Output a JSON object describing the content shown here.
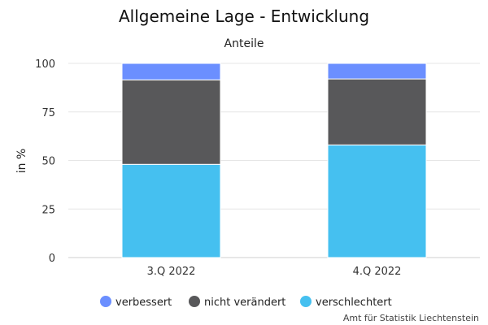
{
  "chart_data": {
    "type": "bar",
    "stacked": true,
    "title": "Allgemeine Lage - Entwicklung",
    "subtitle": "Anteile",
    "ylabel": "in %",
    "ylim": [
      0,
      100
    ],
    "yticks": [
      0,
      25,
      50,
      75,
      100
    ],
    "grid": true,
    "legend_position": "bottom",
    "categories": [
      "3.Q 2022",
      "4.Q 2022"
    ],
    "series": [
      {
        "name": "verschlechtert",
        "values": [
          48,
          58
        ],
        "color": "#45c0f0"
      },
      {
        "name": "nicht verändert",
        "values": [
          43.5,
          34
        ],
        "color": "#58585a"
      },
      {
        "name": "verbessert",
        "values": [
          8.5,
          8
        ],
        "color": "#6b8fff"
      }
    ],
    "legend_order": [
      "verbessert",
      "nicht verändert",
      "verschlechtert"
    ]
  },
  "credit": "Amt für Statistik Liechtenstein"
}
